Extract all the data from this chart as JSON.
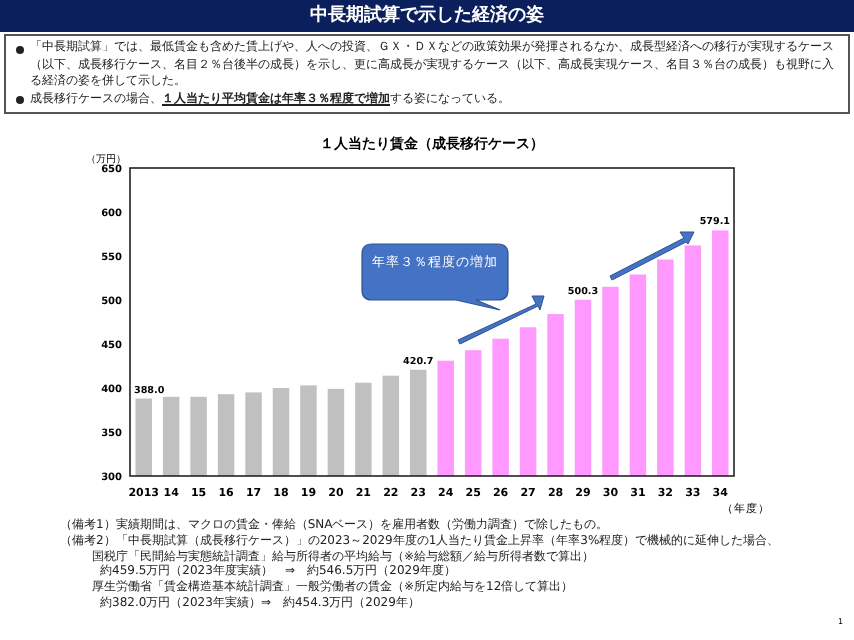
{
  "chart_data": {
    "type": "bar",
    "title": "中長期試算で示した経済の姿",
    "subtitle": "１人当たり賃金（成長移行ケース）",
    "ylabel": "（万円）",
    "xlabel": "（年度）",
    "categories": [
      "2013",
      "14",
      "15",
      "16",
      "17",
      "18",
      "19",
      "20",
      "21",
      "22",
      "23",
      "24",
      "25",
      "26",
      "27",
      "28",
      "29",
      "30",
      "31",
      "32",
      "33",
      "34"
    ],
    "values": [
      388.0,
      390,
      390,
      393,
      395,
      400,
      403,
      399,
      406,
      414,
      420.7,
      431,
      443,
      456,
      469,
      484,
      500.3,
      515,
      529,
      546,
      562,
      579.1
    ],
    "colors": [
      "#c0c0c0",
      "#c0c0c0",
      "#c0c0c0",
      "#c0c0c0",
      "#c0c0c0",
      "#c0c0c0",
      "#c0c0c0",
      "#c0c0c0",
      "#c0c0c0",
      "#c0c0c0",
      "#c0c0c0",
      "#ff99ff",
      "#ff99ff",
      "#ff99ff",
      "#ff99ff",
      "#ff99ff",
      "#ff99ff",
      "#ff99ff",
      "#ff99ff",
      "#ff99ff",
      "#ff99ff",
      "#ff99ff"
    ],
    "value_labels": [
      "388.0",
      null,
      null,
      null,
      null,
      null,
      null,
      null,
      null,
      null,
      "420.7",
      null,
      null,
      null,
      null,
      null,
      "500.3",
      null,
      null,
      null,
      null,
      "579.1"
    ],
    "ylim": [
      300,
      650
    ],
    "yticks": [
      300,
      350,
      400,
      450,
      500,
      550,
      600,
      650
    ],
    "grid": false,
    "annotations": [
      "「中長期試算」では、最低賃金も含めた賃上げや、人への投資、ＧＸ・ＤＸなどの政策効果が発揮されるなか、成長型経済への移行が実現するケース（以下、成長移行ケース、名目２％台後半の成長）を示し、更に高成長が実現するケース（以下、高成長実現ケース、名目３％台の成長）も視野に入る経済の姿を併して示した。",
      "成長移行ケースの場合、",
      "１人当たり平均賃金は年率３％程度で増加",
      "する姿になっている。",
      "年率３％程度の増加",
      "（備考1）実績期間は、マクロの賃金・俸給（SNAベース）を雇用者数（労働力調査）で除したもの。",
      "（備考2）「中長期試算（成長移行ケース）」の2023～2029年度の1人当たり賃金上昇率（年率3%程度）で機械的に延伸した場合、",
      "国税庁「民間給与実態統計調査」給与所得者の平均給与（※給与総額／給与所得者数で算出）",
      "約459.5万円（2023年度実績）　⇒　約546.5万円（2029年度）",
      "厚生労働省「賃金構造基本統計調査」一般労働者の賃金（※所定内給与を12倍して算出）",
      "約382.0万円（2023年実績）⇒　約454.3万円（2029年）",
      "1"
    ]
  }
}
